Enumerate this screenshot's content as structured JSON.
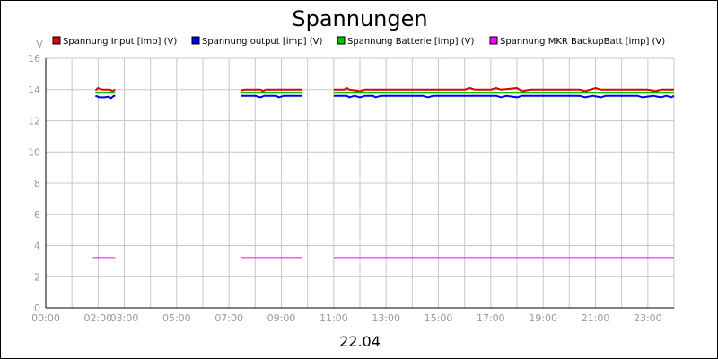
{
  "chart_data": {
    "type": "line",
    "title": "Spannungen",
    "xlabel": "22.04",
    "ylabel": "V",
    "xlim": [
      0,
      24
    ],
    "ylim": [
      0,
      16
    ],
    "x_ticks": [
      "00:00",
      "02:00",
      "03:00",
      "05:00",
      "07:00",
      "09:00",
      "11:00",
      "13:00",
      "15:00",
      "17:00",
      "19:00",
      "21:00",
      "23:00"
    ],
    "x_tick_hours": [
      0,
      2,
      3,
      5,
      7,
      9,
      11,
      13,
      15,
      17,
      19,
      21,
      23
    ],
    "y_ticks": [
      0,
      2,
      4,
      6,
      8,
      10,
      12,
      14,
      16
    ],
    "grid": true,
    "legend_position": "top",
    "series": [
      {
        "name": "Spannung Input [imp] (V)",
        "color": "#e00000",
        "segments": [
          [
            [
              1.9,
              13.95
            ],
            [
              2.0,
              14.1
            ],
            [
              2.15,
              14.0
            ],
            [
              2.3,
              14.0
            ],
            [
              2.45,
              14.0
            ],
            [
              2.55,
              13.9
            ],
            [
              2.65,
              14.0
            ]
          ],
          [
            [
              7.45,
              13.95
            ],
            [
              7.6,
              14.0
            ],
            [
              8.2,
              14.0
            ],
            [
              8.3,
              13.9
            ],
            [
              8.4,
              14.0
            ],
            [
              9.0,
              14.0
            ],
            [
              9.8,
              14.0
            ]
          ],
          [
            [
              11.0,
              14.0
            ],
            [
              11.4,
              14.0
            ],
            [
              11.5,
              14.1
            ],
            [
              11.6,
              14.0
            ],
            [
              12.0,
              13.9
            ],
            [
              12.2,
              14.0
            ],
            [
              15.0,
              14.0
            ],
            [
              16.0,
              14.0
            ],
            [
              16.2,
              14.1
            ],
            [
              16.4,
              14.0
            ],
            [
              17.0,
              14.0
            ],
            [
              17.2,
              14.1
            ],
            [
              17.4,
              14.0
            ],
            [
              18.0,
              14.1
            ],
            [
              18.2,
              13.9
            ],
            [
              18.5,
              14.0
            ],
            [
              20.4,
              14.0
            ],
            [
              20.6,
              13.9
            ],
            [
              20.8,
              14.0
            ],
            [
              21.0,
              14.1
            ],
            [
              21.2,
              14.0
            ],
            [
              23.0,
              14.0
            ],
            [
              23.3,
              13.9
            ],
            [
              23.5,
              14.0
            ],
            [
              23.8,
              14.0
            ],
            [
              24.0,
              14.0
            ]
          ]
        ]
      },
      {
        "name": "Spannung output [imp] (V)",
        "color": "#0000e0",
        "segments": [
          [
            [
              1.9,
              13.6
            ],
            [
              2.05,
              13.5
            ],
            [
              2.25,
              13.5
            ],
            [
              2.4,
              13.55
            ],
            [
              2.5,
              13.45
            ],
            [
              2.6,
              13.6
            ],
            [
              2.65,
              13.6
            ]
          ],
          [
            [
              7.45,
              13.6
            ],
            [
              8.0,
              13.6
            ],
            [
              8.2,
              13.5
            ],
            [
              8.35,
              13.6
            ],
            [
              8.8,
              13.6
            ],
            [
              8.9,
              13.5
            ],
            [
              9.1,
              13.6
            ],
            [
              9.8,
              13.6
            ]
          ],
          [
            [
              11.0,
              13.6
            ],
            [
              11.5,
              13.6
            ],
            [
              11.6,
              13.5
            ],
            [
              11.8,
              13.6
            ],
            [
              12.0,
              13.5
            ],
            [
              12.2,
              13.6
            ],
            [
              12.5,
              13.6
            ],
            [
              12.6,
              13.5
            ],
            [
              12.8,
              13.6
            ],
            [
              14.4,
              13.6
            ],
            [
              14.6,
              13.5
            ],
            [
              14.8,
              13.6
            ],
            [
              17.2,
              13.6
            ],
            [
              17.4,
              13.5
            ],
            [
              17.6,
              13.6
            ],
            [
              18.0,
              13.5
            ],
            [
              18.2,
              13.6
            ],
            [
              20.4,
              13.6
            ],
            [
              20.6,
              13.5
            ],
            [
              20.9,
              13.6
            ],
            [
              21.2,
              13.5
            ],
            [
              21.4,
              13.6
            ],
            [
              22.6,
              13.6
            ],
            [
              22.8,
              13.5
            ],
            [
              23.2,
              13.6
            ],
            [
              23.5,
              13.5
            ],
            [
              23.7,
              13.6
            ],
            [
              23.9,
              13.5
            ],
            [
              24.0,
              13.6
            ]
          ]
        ]
      },
      {
        "name": "Spannung Batterie [imp] (V)",
        "color": "#00c000",
        "segments": [
          [
            [
              1.9,
              13.8
            ],
            [
              2.65,
              13.8
            ]
          ],
          [
            [
              7.45,
              13.8
            ],
            [
              9.8,
              13.8
            ]
          ],
          [
            [
              11.0,
              13.8
            ],
            [
              24.0,
              13.8
            ]
          ]
        ]
      },
      {
        "name": "Spannung MKR BackupBatt [imp] (V)",
        "color": "#ff00ff",
        "segments": [
          [
            [
              1.8,
              3.2
            ],
            [
              2.65,
              3.2
            ]
          ],
          [
            [
              7.45,
              3.2
            ],
            [
              9.8,
              3.2
            ]
          ],
          [
            [
              11.0,
              3.2
            ],
            [
              24.0,
              3.2
            ]
          ]
        ]
      }
    ]
  }
}
